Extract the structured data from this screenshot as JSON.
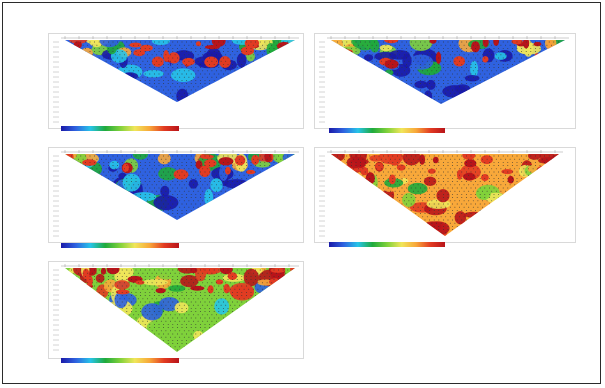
{
  "figure": {
    "panels": [
      {
        "id": "p1",
        "colormap": [
          "#1a1aa8",
          "#2f62e0",
          "#27c4e8",
          "#1faa3c",
          "#7fd13b",
          "#f0e65a",
          "#f8a83a",
          "#e23b22",
          "#b8141a"
        ],
        "dominant": "low-resistivity"
      },
      {
        "id": "p2",
        "colormap": [
          "#1a1aa8",
          "#2f62e0",
          "#27c4e8",
          "#1faa3c",
          "#7fd13b",
          "#f0e65a",
          "#f8a83a",
          "#e23b22",
          "#b8141a"
        ],
        "dominant": "low-resistivity"
      },
      {
        "id": "p3",
        "colormap": [
          "#1a1aa8",
          "#2f62e0",
          "#27c4e8",
          "#1faa3c",
          "#7fd13b",
          "#f0e65a",
          "#f8a83a",
          "#e23b22",
          "#b8141a"
        ],
        "dominant": "low-resistivity"
      },
      {
        "id": "p4",
        "colormap": [
          "#1a1aa8",
          "#2f62e0",
          "#27c4e8",
          "#1faa3c",
          "#7fd13b",
          "#f0e65a",
          "#f8a83a",
          "#e23b22",
          "#b8141a"
        ],
        "dominant": "high-resistivity"
      },
      {
        "id": "p5",
        "colormap": [
          "#1a1aa8",
          "#2f62e0",
          "#27c4e8",
          "#1faa3c",
          "#7fd13b",
          "#f0e65a",
          "#f8a83a",
          "#e23b22",
          "#b8141a"
        ],
        "dominant": "mixed"
      }
    ],
    "colors": {
      "frame_border": "#2b2b2b",
      "panel_border": "#d9d9d9",
      "measurement_dots": "#333333"
    }
  }
}
